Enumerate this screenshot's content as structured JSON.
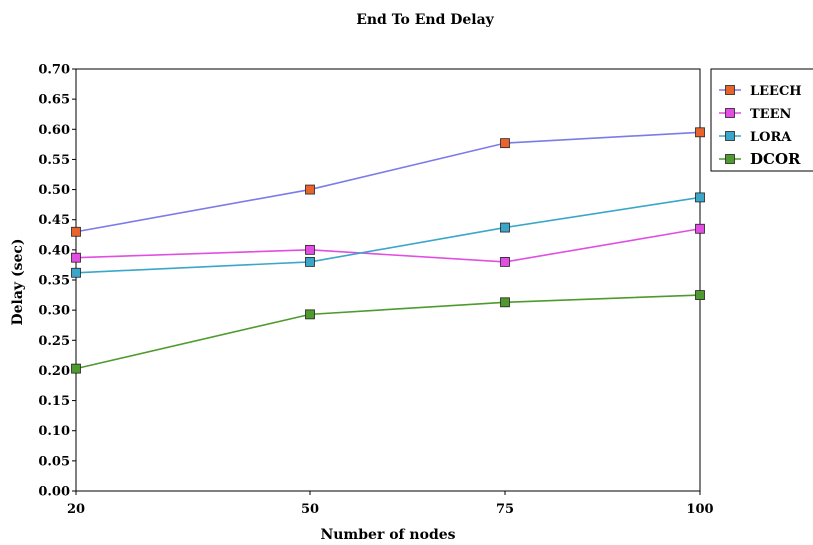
{
  "chart_data": {
    "type": "line",
    "title": "End To End Delay",
    "xlabel": "Number of nodes",
    "ylabel": "Delay (sec)",
    "x": [
      20,
      50,
      75,
      100
    ],
    "x_tick_labels": [
      "20",
      "50",
      "75",
      "100"
    ],
    "ylim": [
      0,
      0.7
    ],
    "y_tick_labels": [
      "0.00",
      "0.05",
      "0.10",
      "0.15",
      "0.20",
      "0.25",
      "0.30",
      "0.35",
      "0.40",
      "0.45",
      "0.50",
      "0.55",
      "0.60",
      "0.65",
      "0.70"
    ],
    "grid": false,
    "legend_position": "top-right",
    "series": [
      {
        "name": "LEECH",
        "values": [
          0.43,
          0.5,
          0.577,
          0.595
        ],
        "line_color": "#7b7bea",
        "marker_color": "#e8642c"
      },
      {
        "name": "TEEN",
        "values": [
          0.387,
          0.4,
          0.38,
          0.435
        ],
        "line_color": "#e14ee1",
        "marker_color": "#e14ee1"
      },
      {
        "name": "LORA",
        "values": [
          0.362,
          0.38,
          0.437,
          0.487
        ],
        "line_color": "#3aa7c9",
        "marker_color": "#3aa7c9"
      },
      {
        "name": "DCOR",
        "values": [
          0.203,
          0.293,
          0.313,
          0.325
        ],
        "line_color": "#4f9a2e",
        "marker_color": "#4f9a2e"
      }
    ]
  }
}
